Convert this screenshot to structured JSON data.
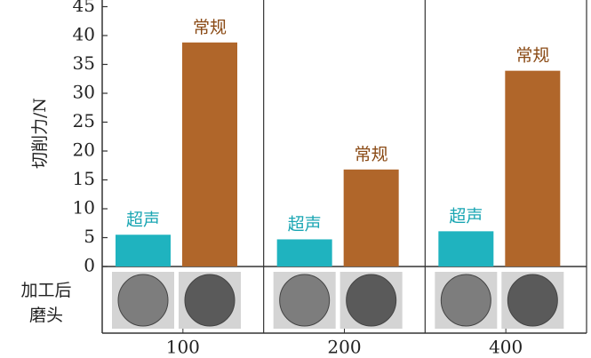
{
  "chart_data": {
    "type": "bar",
    "y_label": "切削力/N",
    "categories": [
      "100",
      "200",
      "400"
    ],
    "series": [
      {
        "name": "超声",
        "color": "#1fb3bf",
        "values": [
          5.5,
          4.7,
          6.1
        ]
      },
      {
        "name": "常规",
        "color": "#b0662a",
        "values": [
          38.8,
          16.8,
          33.9
        ]
      }
    ],
    "ylim": [
      0,
      45
    ],
    "yticks": [
      0,
      5,
      10,
      15,
      20,
      25,
      30,
      35,
      40,
      45
    ],
    "row_label": [
      "加工后",
      "磨头"
    ]
  }
}
